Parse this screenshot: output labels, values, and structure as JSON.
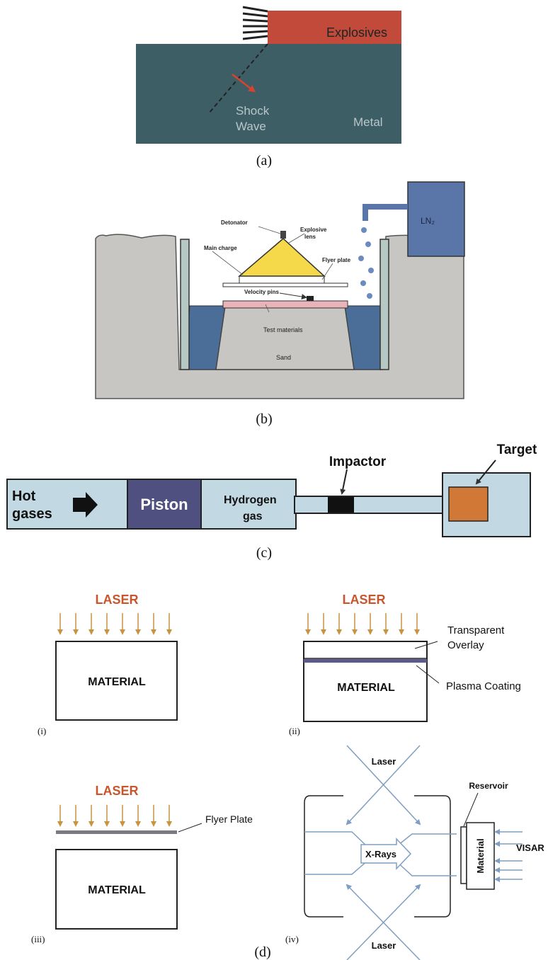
{
  "panel_a": {
    "caption": "(a)",
    "explosives_label": "Explosives",
    "shock_label_line1": "Shock",
    "shock_label_line2": "Wave",
    "metal_label": "Metal",
    "colors": {
      "metal": "#3e5e66",
      "explosives": "#c14a3a",
      "arrow": "#d8432f"
    }
  },
  "panel_b": {
    "caption": "(b)",
    "ln2_label": "LN₂",
    "detonator_label": "Detonator",
    "explosive_lens_line1": "Explosive",
    "explosive_lens_line2": "lens",
    "main_charge_label": "Main charge",
    "flyer_plate_label": "Flyer plate",
    "velocity_pins_label": "Velocity pins",
    "test_materials_label": "Test materials",
    "sand_label": "Sand",
    "colors": {
      "ground": "#c7c6c2",
      "water": "#4a6e98",
      "tank": "#5a75a7",
      "explosive": "#f5d94a",
      "test": "#e8b4b8"
    }
  },
  "panel_c": {
    "caption": "(c)",
    "hot_gases_line1": "Hot",
    "hot_gases_line2": "gases",
    "piston_label": "Piston",
    "hydrogen_line1": "Hydrogen",
    "hydrogen_line2": "gas",
    "impactor_label": "Impactor",
    "target_label": "Target",
    "colors": {
      "tube": "#c2d8e2",
      "piston": "#4f4f80",
      "target": "#d27837"
    }
  },
  "panel_d": {
    "caption": "(d)",
    "laser_label": "LASER",
    "material_label": "MATERIAL",
    "sub_i": "(i)",
    "sub_ii": "(ii)",
    "sub_iii": "(iii)",
    "sub_iv": "(iv)",
    "transparent_line1": "Transparent",
    "transparent_line2": "Overlay",
    "plasma_coating_label": "Plasma Coating",
    "flyer_plate_label": "Flyer Plate",
    "laser_small": "Laser",
    "reservoir_label": "Reservoir",
    "material_vertical": "Material",
    "visar_label": "VISAR",
    "xrays_label": "X-Rays",
    "colors": {
      "laser_text": "#c8562d",
      "laser_arrow": "#c89440",
      "blue_lines": "#7f9fc2"
    }
  }
}
